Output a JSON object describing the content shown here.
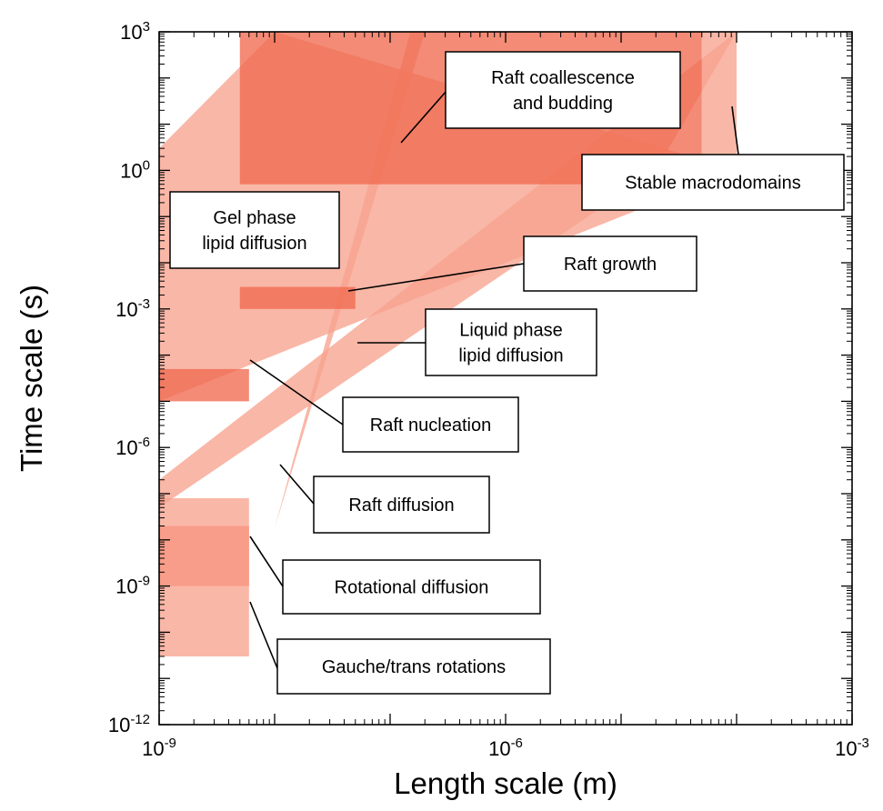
{
  "chart_data": {
    "type": "area",
    "x_scale": "log",
    "y_scale": "log",
    "xlim": [
      1e-09,
      0.001
    ],
    "ylim": [
      1e-12,
      1000
    ],
    "xlabel": "Length scale (m)",
    "ylabel": "Time scale (s)",
    "x_ticks": [
      {
        "base": "10",
        "exp": "-9"
      },
      {
        "base": "10",
        "exp": "-6"
      },
      {
        "base": "10",
        "exp": "-3"
      }
    ],
    "y_ticks": [
      {
        "base": "10",
        "exp": "3"
      },
      {
        "base": "10",
        "exp": "0"
      },
      {
        "base": "10",
        "exp": "-3"
      },
      {
        "base": "10",
        "exp": "-6"
      },
      {
        "base": "10",
        "exp": "-9"
      },
      {
        "base": "10",
        "exp": "-12"
      }
    ],
    "colors": {
      "light": "#f7a38e",
      "medium": "#f06a4f",
      "dark": "#ee4a2b"
    },
    "regions": [
      {
        "name": "Gel phase lipid diffusion",
        "shape": "band",
        "lower_edge": [
          [
            1e-09,
            1e-05
          ],
          [
            0.0001,
            1
          ]
        ],
        "upper_edge": [
          [
            1e-09,
            3
          ],
          [
            1e-08,
            1000
          ]
        ],
        "color": "light"
      },
      {
        "name": "Liquid phase lipid diffusion",
        "shape": "band",
        "lower_edge": [
          [
            1e-09,
            5e-08
          ],
          [
            2e-05,
            1
          ]
        ],
        "upper_edge": [
          [
            1e-09,
            2e-07
          ],
          [
            0.0001,
            1000
          ]
        ],
        "color": "light"
      },
      {
        "name": "Raft diffusion",
        "shape": "band",
        "lower_edge": [
          [
            1e-08,
            1.8e-08
          ],
          [
            2e-07,
            1000
          ]
        ],
        "upper_edge": [
          [
            1e-08,
            1.8e-08
          ],
          [
            1.5e-07,
            1000
          ]
        ],
        "color": "light"
      },
      {
        "name": "Raft coallescence and budding",
        "shape": "rect",
        "x": [
          5e-09,
          5e-05
        ],
        "y": [
          0.5,
          1000
        ],
        "color": "medium"
      },
      {
        "name": "Stable macrodomains",
        "shape": "rect",
        "x": [
          5e-05,
          0.0001
        ],
        "y": [
          0.5,
          1000
        ],
        "color": "light"
      },
      {
        "name": "Raft growth",
        "shape": "rect",
        "x": [
          5e-09,
          5e-08
        ],
        "y": [
          0.001,
          0.003
        ],
        "color": "medium"
      },
      {
        "name": "Raft nucleation",
        "shape": "rect",
        "x": [
          1e-09,
          6e-09
        ],
        "y": [
          1e-05,
          5e-05
        ],
        "color": "medium"
      },
      {
        "name": "Rotational diffusion",
        "shape": "rect",
        "x": [
          1e-09,
          6e-09
        ],
        "y": [
          1e-09,
          2e-08
        ],
        "color": "medium"
      },
      {
        "name": "Gauche/trans rotations",
        "shape": "rect",
        "x": [
          1e-09,
          6e-09
        ],
        "y": [
          3e-11,
          8e-08
        ],
        "color": "light"
      }
    ],
    "annotations": [
      {
        "lines": [
          "Raft coallescence",
          "and budding"
        ]
      },
      {
        "lines": [
          "Stable macrodomains"
        ]
      },
      {
        "lines": [
          "Gel phase",
          "lipid diffusion"
        ]
      },
      {
        "lines": [
          "Raft growth"
        ]
      },
      {
        "lines": [
          "Liquid phase",
          "lipid diffusion"
        ]
      },
      {
        "lines": [
          "Raft nucleation"
        ]
      },
      {
        "lines": [
          "Raft diffusion"
        ]
      },
      {
        "lines": [
          "Rotational diffusion"
        ]
      },
      {
        "lines": [
          "Gauche/trans rotations"
        ]
      }
    ]
  }
}
